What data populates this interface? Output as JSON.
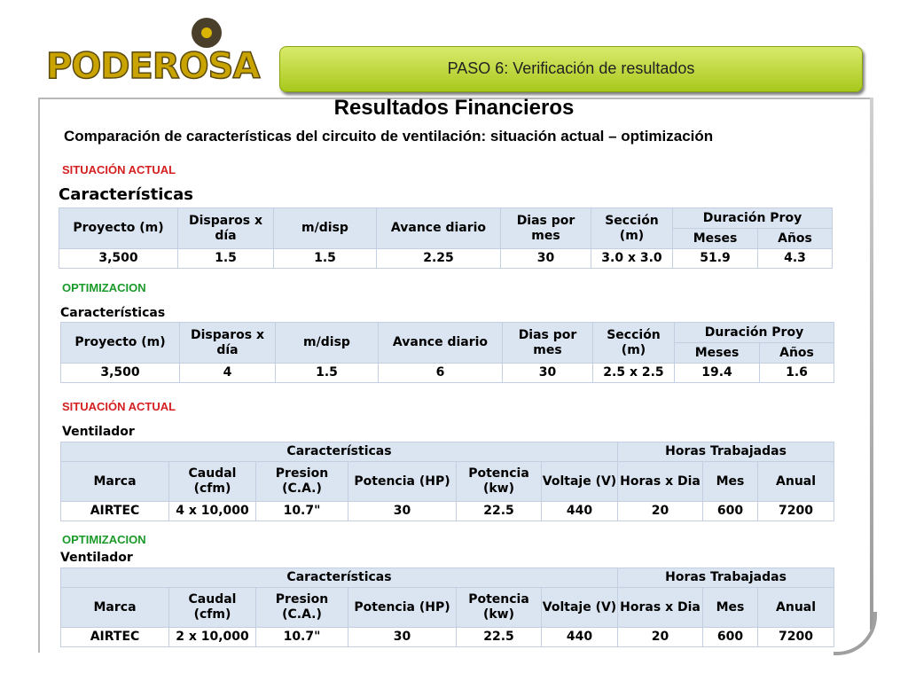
{
  "logo": {
    "text": "PODEROSA"
  },
  "banner": {
    "text": "PASO 6: Verificación de resultados"
  },
  "title": "Resultados Financieros",
  "subtitle": "Comparación de características del circuito de ventilación: situación actual – optimización",
  "colors": {
    "banner": "#b8d42a",
    "header_fill": "#dbe5f1",
    "situacion": "#d42020",
    "optimizacion": "#1a9a2a",
    "logo": "#c9a400"
  },
  "sections": [
    {
      "tag": "SITUACIÓN ACTUAL",
      "label": "Características",
      "headers": [
        "Proyecto (m)",
        "Disparos x día",
        "m/disp",
        "Avance diario",
        "Dias por mes",
        "Sección (m)",
        "Duración Proy",
        "Meses",
        "Años"
      ],
      "row": [
        "3,500",
        "1.5",
        "1.5",
        "2.25",
        "30",
        "3.0 x 3.0",
        "51.9",
        "4.3"
      ]
    },
    {
      "tag": "OPTIMIZACION",
      "label": "Características",
      "headers": [
        "Proyecto (m)",
        "Disparos x día",
        "m/disp",
        "Avance diario",
        "Dias por mes",
        "Sección (m)",
        "Duración Proy",
        "Meses",
        "Años"
      ],
      "row": [
        "3,500",
        "4",
        "1.5",
        "6",
        "30",
        "2.5 x 2.5",
        "19.4",
        "1.6"
      ]
    },
    {
      "tag": "SITUACIÓN ACTUAL",
      "label": "Ventilador",
      "group_headers": [
        "Características",
        "Horas Trabajadas"
      ],
      "headers": [
        "Marca",
        "Caudal (cfm)",
        "Presion (C.A.)",
        "Potencia (HP)",
        "Potencia (kw)",
        "Voltaje (V)",
        "Horas x Dia",
        "Mes",
        "Anual"
      ],
      "row": [
        "AIRTEC",
        "4 x 10,000",
        "10.7\"",
        "30",
        "22.5",
        "440",
        "20",
        "600",
        "7200"
      ]
    },
    {
      "tag": "OPTIMIZACION",
      "label": "Ventilador",
      "group_headers": [
        "Características",
        "Horas Trabajadas"
      ],
      "headers": [
        "Marca",
        "Caudal (cfm)",
        "Presion (C.A.)",
        "Potencia (HP)",
        "Potencia (kw)",
        "Voltaje (V)",
        "Horas x Dia",
        "Mes",
        "Anual"
      ],
      "row": [
        "AIRTEC",
        "2 x 10,000",
        "10.7\"",
        "30",
        "22.5",
        "440",
        "20",
        "600",
        "7200"
      ]
    }
  ]
}
